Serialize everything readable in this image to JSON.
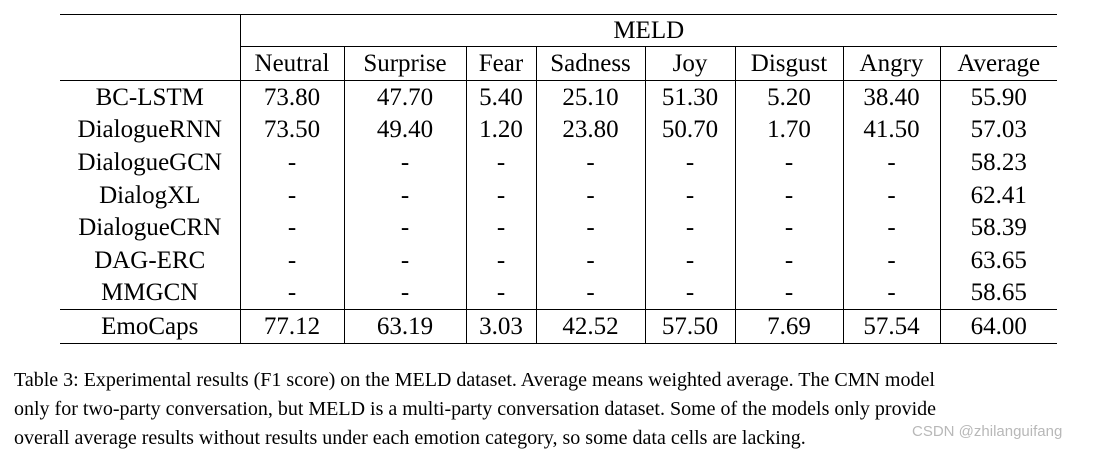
{
  "table": {
    "group_header": "MELD",
    "columns": [
      "Neutral",
      "Surprise",
      "Fear",
      "Sadness",
      "Joy",
      "Disgust",
      "Angry",
      "Average"
    ],
    "rows": [
      {
        "model": "BC-LSTM",
        "values": [
          "73.80",
          "47.70",
          "5.40",
          "25.10",
          "51.30",
          "5.20",
          "38.40",
          "55.90"
        ],
        "bold": [
          false,
          false,
          true,
          false,
          false,
          false,
          false,
          false
        ]
      },
      {
        "model": "DialogueRNN",
        "values": [
          "73.50",
          "49.40",
          "1.20",
          "23.80",
          "50.70",
          "1.70",
          "41.50",
          "57.03"
        ],
        "bold": [
          false,
          false,
          false,
          false,
          false,
          false,
          false,
          false
        ]
      },
      {
        "model": "DialogueGCN",
        "values": [
          "-",
          "-",
          "-",
          "-",
          "-",
          "-",
          "-",
          "58.23"
        ],
        "bold": [
          false,
          false,
          false,
          false,
          false,
          false,
          false,
          false
        ]
      },
      {
        "model": "DialogXL",
        "values": [
          "-",
          "-",
          "-",
          "-",
          "-",
          "-",
          "-",
          "62.41"
        ],
        "bold": [
          false,
          false,
          false,
          false,
          false,
          false,
          false,
          false
        ]
      },
      {
        "model": "DialogueCRN",
        "values": [
          "-",
          "-",
          "-",
          "-",
          "-",
          "-",
          "-",
          "58.39"
        ],
        "bold": [
          false,
          false,
          false,
          false,
          false,
          false,
          false,
          false
        ]
      },
      {
        "model": "DAG-ERC",
        "values": [
          "-",
          "-",
          "-",
          "-",
          "-",
          "-",
          "-",
          "63.65"
        ],
        "bold": [
          false,
          false,
          false,
          false,
          false,
          false,
          false,
          false
        ]
      },
      {
        "model": "MMGCN",
        "values": [
          "-",
          "-",
          "-",
          "-",
          "-",
          "-",
          "-",
          "58.65"
        ],
        "bold": [
          false,
          false,
          false,
          false,
          false,
          false,
          false,
          false
        ]
      }
    ],
    "ours": {
      "model": "EmoCaps",
      "values": [
        "77.12",
        "63.19",
        "3.03",
        "42.52",
        "57.50",
        "7.69",
        "57.54",
        "64.00"
      ],
      "bold": [
        true,
        true,
        false,
        true,
        true,
        true,
        true,
        true
      ]
    }
  },
  "caption": {
    "line1": "Table 3: Experimental results (F1 score) on the MELD dataset. Average means weighted average. The CMN model",
    "line2": "only for two-party conversation, but MELD is a multi-party conversation dataset. Some of the models only provide",
    "line3": "overall average results without results under each emotion category, so some data cells are lacking."
  },
  "watermark": "CSDN @zhilanguifang"
}
